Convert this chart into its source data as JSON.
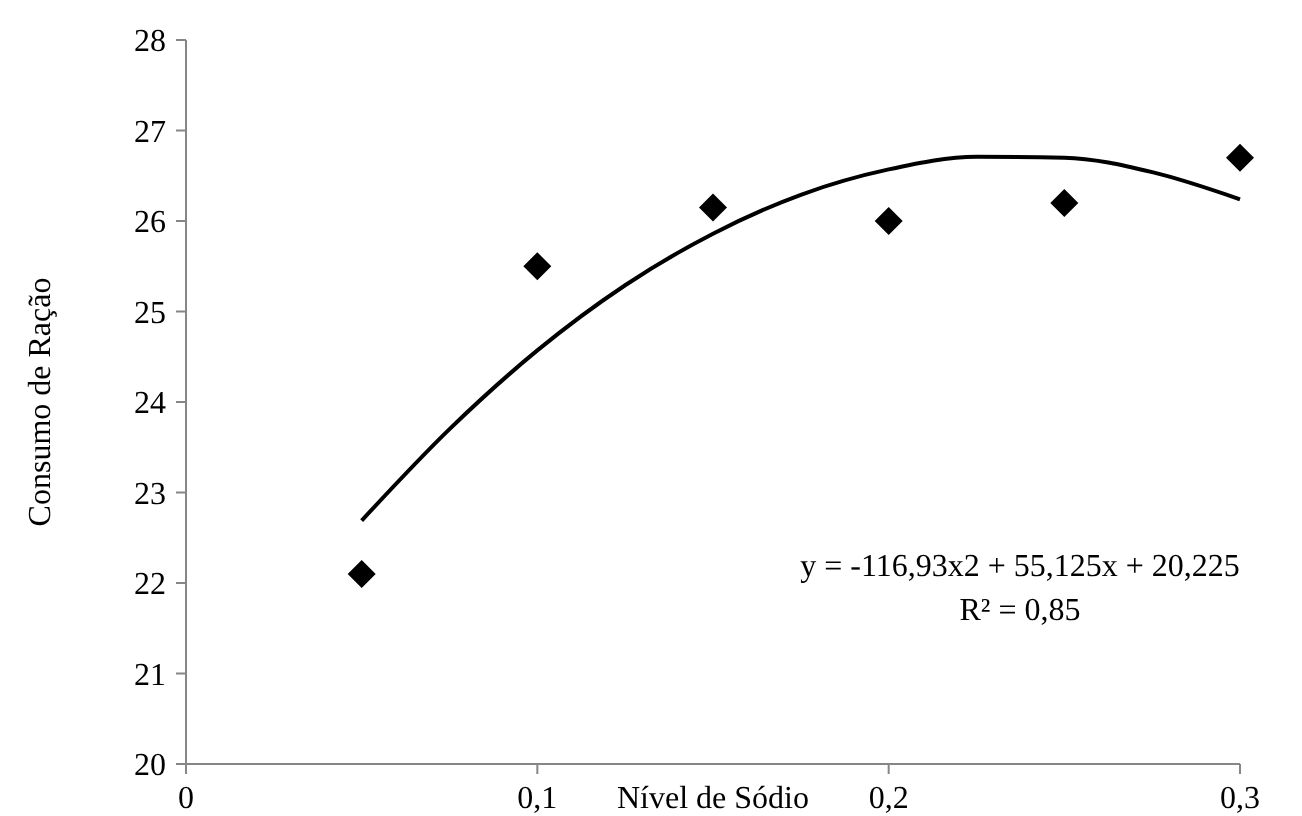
{
  "chart_data": {
    "type": "scatter",
    "xlabel": "Nível de Sódio",
    "ylabel": "Consumo de Ração",
    "xlim": [
      0,
      0.3
    ],
    "xticks": [
      0,
      {
        "value": 0.1,
        "label": "0,1"
      },
      {
        "value": 0.2,
        "label": "0,2"
      },
      {
        "value": 0.3,
        "label": "0,3"
      }
    ],
    "ylim": [
      20,
      28
    ],
    "yticks": [
      20,
      21,
      22,
      23,
      24,
      25,
      26,
      27,
      28
    ],
    "grid": false,
    "series": [
      {
        "color": "#000000",
        "marker": "diamond",
        "x": [
          0.05,
          0.1,
          0.15,
          0.2,
          0.25,
          0.3
        ],
        "values": [
          22.1,
          25.5,
          26.15,
          26.0,
          26.2,
          26.7
        ]
      },
      {
        "type": "line",
        "color": "#000000",
        "marker": "none",
        "line_style": "solid",
        "x": [
          0.05,
          0.075,
          0.1,
          0.125,
          0.15,
          0.175,
          0.2,
          0.225,
          0.25,
          0.275,
          0.3
        ],
        "values": [
          22.69,
          23.7,
          24.57,
          25.29,
          25.86,
          26.29,
          26.57,
          26.71,
          26.7,
          26.54,
          26.24
        ]
      }
    ],
    "annotations": [
      "y = -116,93x2 + 55,125x + 20,225",
      "R² = 0,85"
    ]
  }
}
